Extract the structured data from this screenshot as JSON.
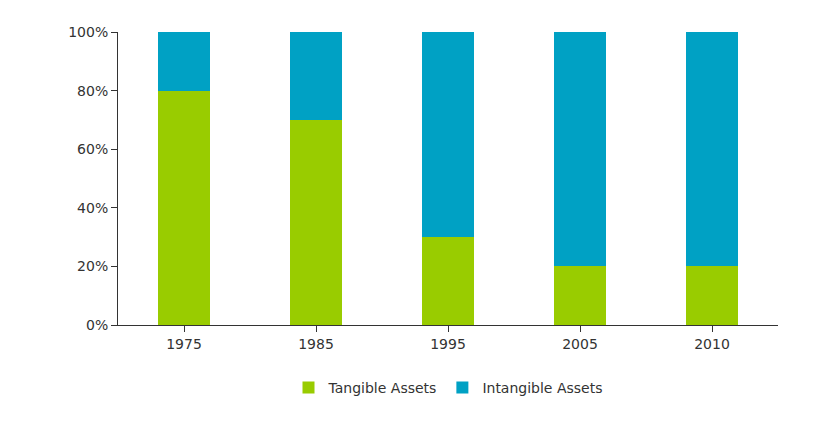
{
  "chart_data": {
    "type": "bar",
    "stacked": true,
    "legend": "bottom",
    "grid": false,
    "categories": [
      "1975",
      "1985",
      "1995",
      "2005",
      "2010"
    ],
    "series": [
      {
        "name": "Tangible Assets",
        "color": "#99cc00",
        "values": [
          80,
          70,
          30,
          20,
          20
        ]
      },
      {
        "name": "Intangible Assets",
        "color": "#00a1c4",
        "values": [
          20,
          30,
          70,
          80,
          80
        ]
      }
    ],
    "ylim": [
      0,
      100
    ],
    "yticks": [
      {
        "value": 0,
        "label": "0%"
      },
      {
        "value": 20,
        "label": "20%"
      },
      {
        "value": 40,
        "label": "40%"
      },
      {
        "value": 60,
        "label": "60%"
      },
      {
        "value": 80,
        "label": "80%"
      },
      {
        "value": 100,
        "label": "100%"
      }
    ]
  }
}
